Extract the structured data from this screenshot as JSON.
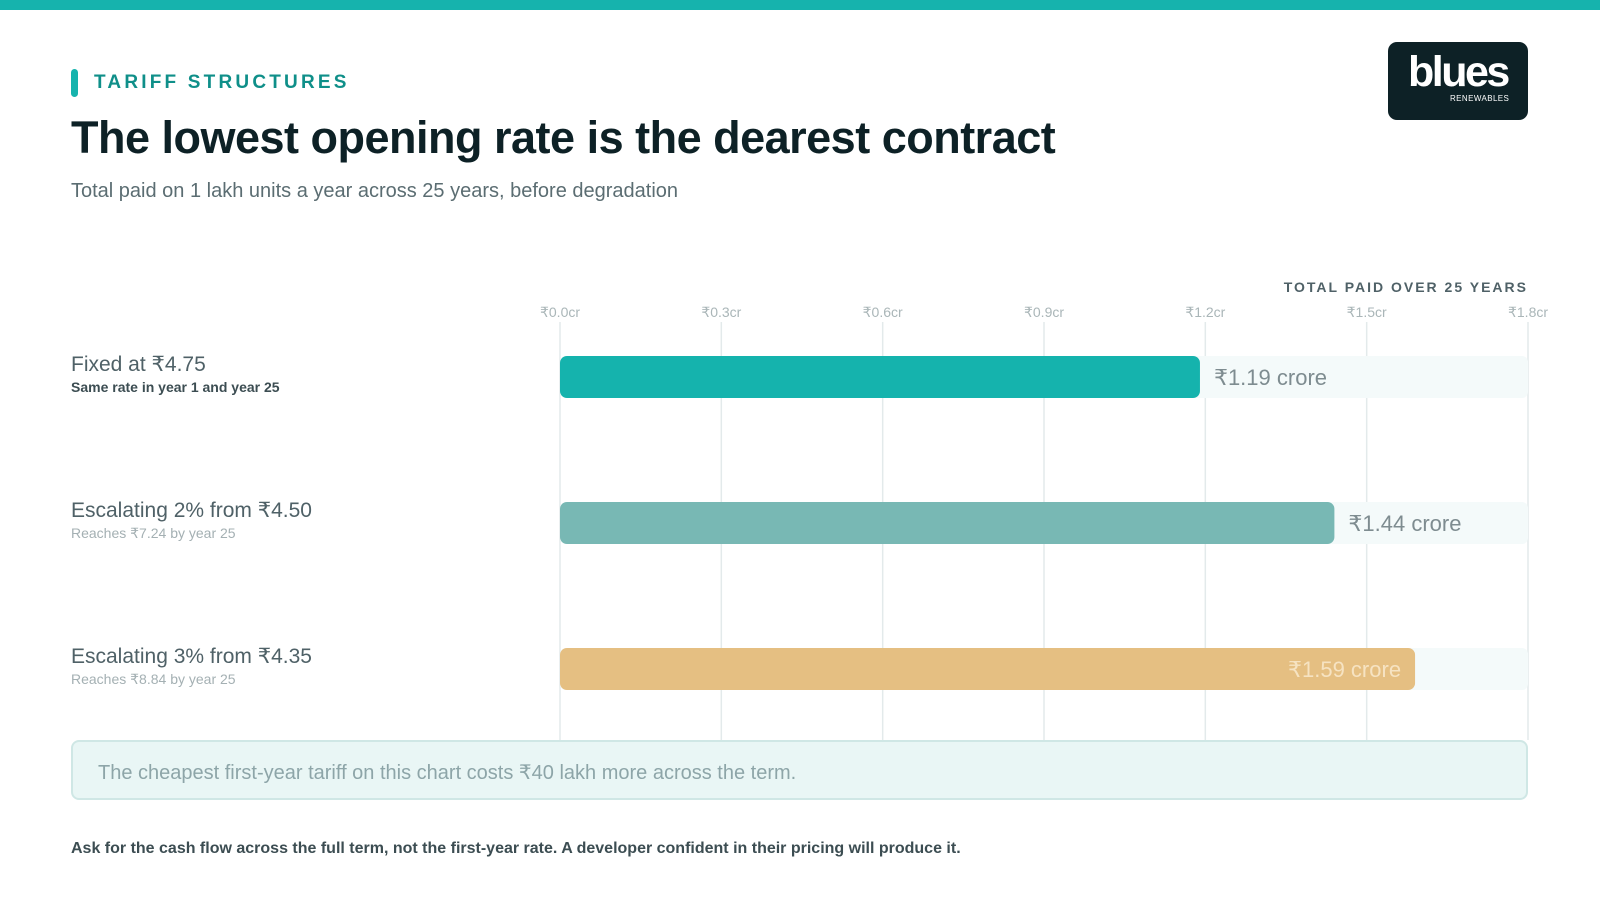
{
  "header": {
    "eyebrow": "TARIFF STRUCTURES",
    "title": "The lowest opening rate is the dearest contract",
    "subtitle": "Total paid on 1 lakh units a year across 25 years, before degradation"
  },
  "logo": {
    "word": "blues",
    "sub": "RENEWABLES"
  },
  "colors": {
    "accent": "#16b3ad",
    "teal": "#15b3ad",
    "sage": "#78b8b4",
    "sand": "#e5bf82",
    "track": "#f4fafa",
    "grid": "#e3eaeb",
    "dark": "#0d2126"
  },
  "chart_data": {
    "type": "bar",
    "orientation": "horizontal",
    "axis_title": "TOTAL PAID OVER 25 YEARS",
    "xlim": [
      0,
      1.8
    ],
    "ticks": [
      0.0,
      0.3,
      0.6,
      0.9,
      1.2,
      1.5,
      1.8
    ],
    "tick_labels": [
      "₹0.0cr",
      "₹0.3cr",
      "₹0.6cr",
      "₹0.9cr",
      "₹1.2cr",
      "₹1.5cr",
      "₹1.8cr"
    ],
    "grid": true,
    "categories": [
      {
        "name": "Fixed at ₹4.75",
        "note": "Same rate in year 1 and year 25",
        "value": 1.19,
        "label": "₹1.19 crore",
        "color": "#15b3ad",
        "label_inside": false,
        "note_emphasis": true
      },
      {
        "name": "Escalating 2% from ₹4.50",
        "note": "Reaches ₹7.24 by year 25",
        "value": 1.44,
        "label": "₹1.44 crore",
        "color": "#78b8b4",
        "label_inside": false,
        "note_emphasis": false
      },
      {
        "name": "Escalating 3% from ₹4.35",
        "note": "Reaches ₹8.84 by year 25",
        "value": 1.59,
        "label": "₹1.59 crore",
        "color": "#e5bf82",
        "label_inside": true,
        "note_emphasis": false
      }
    ]
  },
  "callout": {
    "text": "The cheapest first-year tariff on this chart costs ₹40 lakh more across the term."
  },
  "footer": {
    "text": "Ask for the cash flow across the full term, not the first-year rate. A developer confident in their pricing will produce it."
  }
}
